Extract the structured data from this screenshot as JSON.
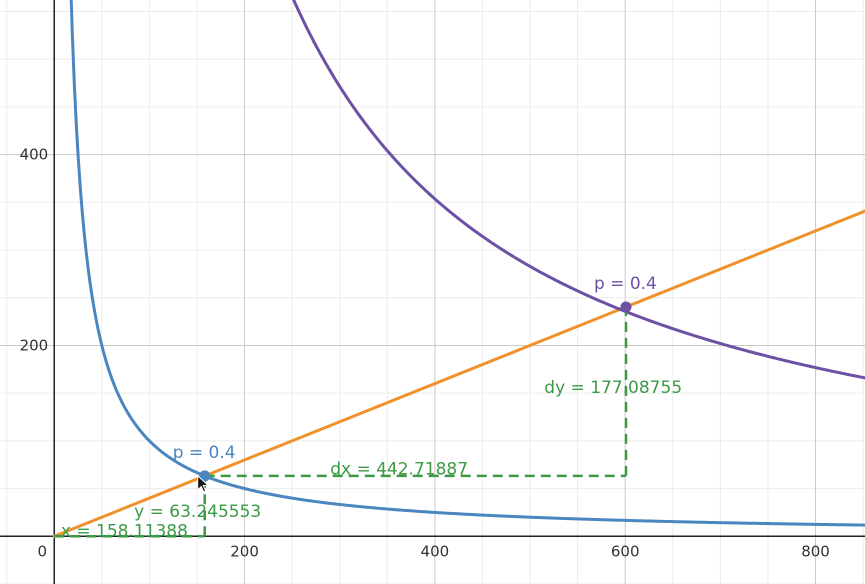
{
  "chart_data": {
    "type": "line",
    "title": "",
    "xlabel": "",
    "ylabel": "",
    "xlim": [
      -57,
      852
    ],
    "ylim": [
      -50,
      562
    ],
    "grid": true,
    "x_ticks": [
      0,
      200,
      400,
      600,
      800
    ],
    "y_ticks": [
      200,
      400
    ],
    "origin_label": "0",
    "series": [
      {
        "kind": "function",
        "formula": "y = 10000 / x",
        "x_range": [
          17,
          852
        ],
        "color": "#4a86c0"
      },
      {
        "kind": "function",
        "formula": "y = 0.4 * x",
        "x_range": [
          0,
          852
        ],
        "color": "#f0922c"
      },
      {
        "kind": "function",
        "formula": "y = 141421.36 / x",
        "x_range": [
          251,
          852
        ],
        "color": "#6c51a4"
      }
    ],
    "points": [
      {
        "label": "p = 0.4",
        "x": 158.11388,
        "y": 63.245553,
        "color": "#4a86c0"
      },
      {
        "label": "p = 0.4",
        "x": 600.83275,
        "y": 240.3331,
        "color": "#6c51a4"
      }
    ],
    "dashed_lines": [
      {
        "from": [
          158.11388,
          0
        ],
        "to": [
          158.11388,
          63.245553
        ],
        "color": "#3c9a46"
      },
      {
        "from": [
          0,
          0
        ],
        "to": [
          158.11388,
          0
        ],
        "color": "#3c9a46"
      },
      {
        "from": [
          158.11388,
          63.245553
        ],
        "to": [
          600.83275,
          63.245553
        ],
        "color": "#3c9a46"
      },
      {
        "from": [
          600.83275,
          63.245553
        ],
        "to": [
          600.83275,
          240.3331
        ],
        "color": "#3c9a46"
      }
    ],
    "annotations": [
      {
        "id": "x",
        "text": "x = 158.11388",
        "x": 7,
        "y": 0,
        "color": "#3c9a46"
      },
      {
        "id": "y",
        "text": "y = 63.245553",
        "x": 84,
        "y": 20,
        "color": "#3c9a46"
      },
      {
        "id": "dx",
        "text": "dx = 442.71887",
        "x": 290,
        "y": 65,
        "color": "#3c9a46"
      },
      {
        "id": "dy",
        "text": "dy = 177.08755",
        "x": 515,
        "y": 150,
        "color": "#3c9a46"
      }
    ]
  }
}
